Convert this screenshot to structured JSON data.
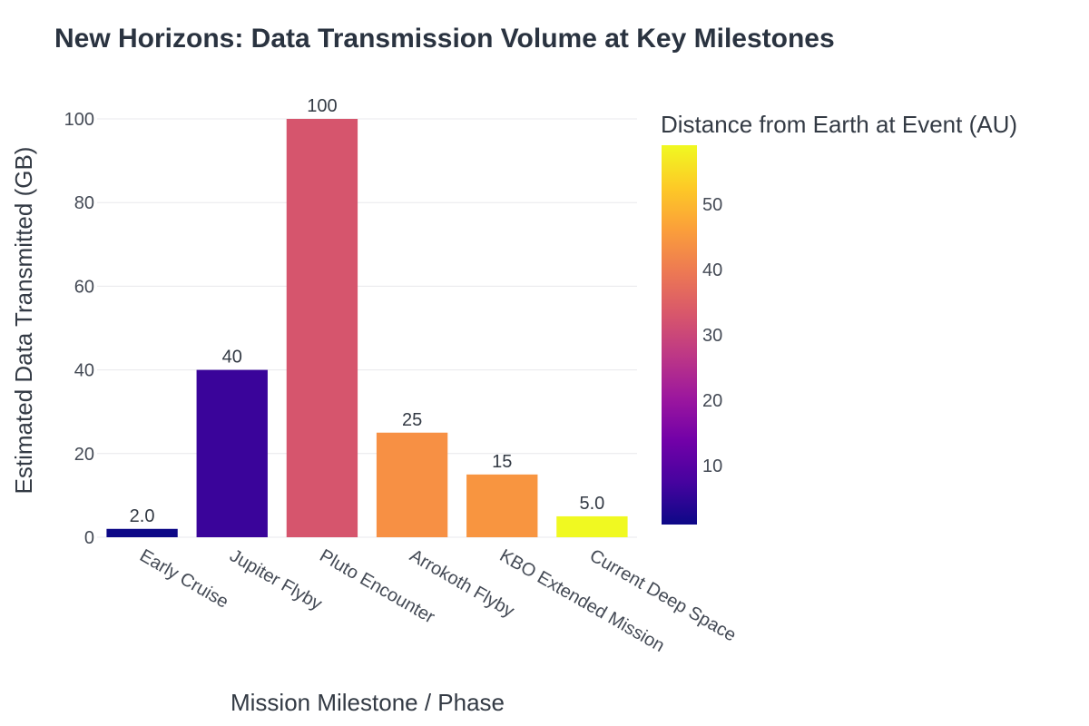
{
  "chart_data": {
    "type": "bar",
    "title": "New Horizons: Data Transmission Volume at Key Milestones",
    "xlabel": "Mission Milestone / Phase",
    "ylabel": "Estimated Data Transmitted (GB)",
    "ylim": [
      0,
      100
    ],
    "yticks": [
      0,
      20,
      40,
      60,
      80,
      100
    ],
    "grid": true,
    "categories": [
      "Early Cruise",
      "Jupiter Flyby",
      "Pluto Encounter",
      "Arrokoth Flyby",
      "KBO Extended Mission",
      "Current Deep Space"
    ],
    "values": [
      2,
      40,
      100,
      25,
      15,
      5
    ],
    "value_labels": [
      "2.0",
      "40",
      "100",
      "25",
      "15",
      "5.0"
    ],
    "bar_colors": [
      "#0d0887",
      "#3a049a",
      "#d6556d",
      "#f79044",
      "#f89540",
      "#f0f921"
    ],
    "colorbar": {
      "title": "Distance from Earth at Event (AU)",
      "range": [
        1,
        59
      ],
      "ticks": [
        10,
        20,
        30,
        40,
        50
      ],
      "colorscale": "plasma",
      "stops": [
        "#0d0887",
        "#46039f",
        "#7201a8",
        "#9c179e",
        "#bd3786",
        "#d8576b",
        "#ed7953",
        "#fb9f3a",
        "#fdca26",
        "#f0f921"
      ]
    }
  }
}
